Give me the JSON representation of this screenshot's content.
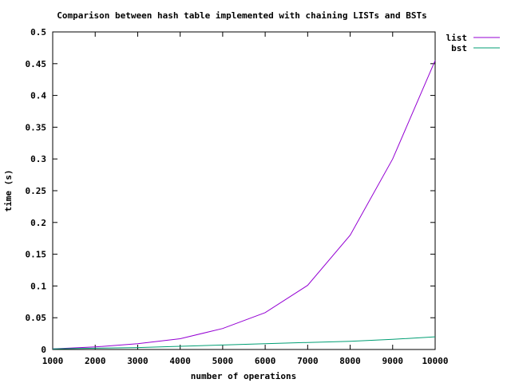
{
  "chart_data": {
    "type": "line",
    "title": "Comparison between hash table implemented with chaining LISTs and BSTs",
    "xlabel": "number of operations",
    "ylabel": "time (s)",
    "xlim": [
      1000,
      10000
    ],
    "ylim": [
      0,
      0.5
    ],
    "x_ticks": [
      1000,
      2000,
      3000,
      4000,
      5000,
      6000,
      7000,
      8000,
      9000,
      10000
    ],
    "x_tick_labels": [
      "1000",
      "2000",
      "3000",
      "4000",
      "5000",
      "6000",
      "7000",
      "8000",
      "9000",
      "10000"
    ],
    "y_ticks": [
      0,
      0.05,
      0.1,
      0.15,
      0.2,
      0.25,
      0.3,
      0.35,
      0.4,
      0.45,
      0.5
    ],
    "y_tick_labels": [
      "0",
      "0.05",
      "0.1",
      "0.15",
      "0.2",
      "0.25",
      "0.3",
      "0.35",
      "0.4",
      "0.45",
      "0.5"
    ],
    "grid": false,
    "legend_position": "top-right outside",
    "x": [
      1000,
      2000,
      3000,
      4000,
      5000,
      6000,
      7000,
      8000,
      9000,
      10000
    ],
    "series": [
      {
        "name": "list",
        "color": "#9400d3",
        "values": [
          0.001,
          0.004,
          0.009,
          0.017,
          0.033,
          0.058,
          0.101,
          0.18,
          0.3,
          0.455
        ]
      },
      {
        "name": "bst",
        "color": "#009e73",
        "values": [
          0.001,
          0.002,
          0.003,
          0.005,
          0.007,
          0.009,
          0.011,
          0.013,
          0.016,
          0.02
        ]
      }
    ]
  }
}
